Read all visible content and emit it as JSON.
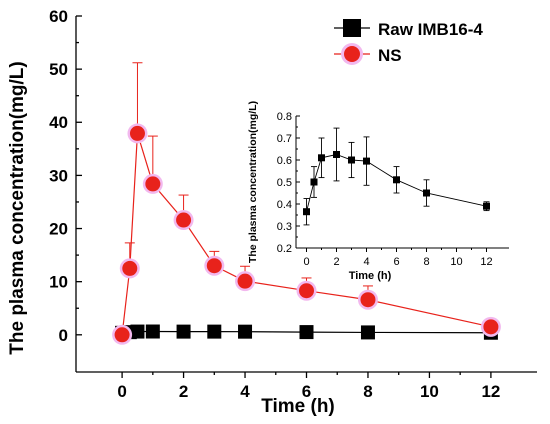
{
  "chart_data": [
    {
      "type": "line",
      "xlabel": "Time (h)",
      "ylabel": "The plasma concentration(mg/L)",
      "xlim": [
        -1.5,
        13.5
      ],
      "ylim": [
        -7,
        60
      ],
      "x_ticks": [
        "0",
        "2",
        "4",
        "6",
        "8",
        "10",
        "12"
      ],
      "y_ticks": [
        "0",
        "10",
        "20",
        "30",
        "40",
        "50",
        "60"
      ],
      "grid": false,
      "legend_position": "top-right",
      "colors": {
        "raw": "#000000",
        "ns": "#e8221b",
        "ns_halo": "#f2b8ee"
      },
      "series": [
        {
          "name": "Raw IMB16-4",
          "marker": "square",
          "x": [
            0,
            0.25,
            0.5,
            1,
            2,
            3,
            4,
            6,
            8,
            12
          ],
          "y": [
            0.37,
            0.5,
            0.61,
            0.62,
            0.6,
            0.6,
            0.59,
            0.51,
            0.45,
            0.39
          ]
        },
        {
          "name": "NS",
          "marker": "circle",
          "x": [
            0,
            0.25,
            0.5,
            1,
            2,
            3,
            4,
            6,
            8,
            12
          ],
          "y": [
            0,
            12.5,
            37.9,
            28.4,
            21.6,
            13.0,
            10.1,
            8.3,
            6.6,
            1.5
          ],
          "error_plus": [
            0,
            4.8,
            13.3,
            9.0,
            4.7,
            2.7,
            2.8,
            2.4,
            2.6,
            0.5
          ]
        }
      ]
    },
    {
      "type": "line",
      "xlabel": "Time (h)",
      "ylabel": "The plasma concentration(mg/L)",
      "xlim": [
        -0.7,
        13.5
      ],
      "ylim": [
        0.2,
        0.8
      ],
      "x_ticks": [
        "0",
        "2",
        "4",
        "6",
        "8",
        "10",
        "12"
      ],
      "y_ticks": [
        "0.2",
        "0.3",
        "0.4",
        "0.5",
        "0.6",
        "0.7",
        "0.8"
      ],
      "grid": false,
      "series": [
        {
          "name": "Raw IMB16-4",
          "marker": "square",
          "x": [
            0,
            0.5,
            1,
            2,
            3,
            4,
            6,
            8,
            12
          ],
          "y": [
            0.365,
            0.5,
            0.61,
            0.625,
            0.6,
            0.595,
            0.51,
            0.45,
            0.39
          ],
          "error": [
            0.06,
            0.07,
            0.09,
            0.12,
            0.08,
            0.11,
            0.06,
            0.06,
            0.02
          ]
        }
      ]
    }
  ]
}
